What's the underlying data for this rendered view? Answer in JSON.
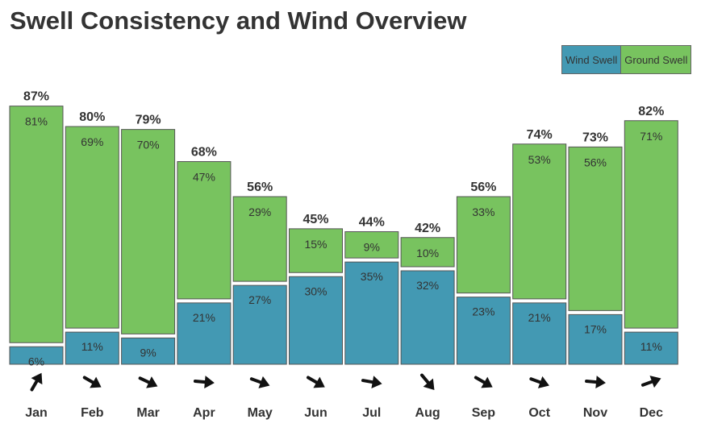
{
  "title": "Swell Consistency and Wind Overview",
  "legend": {
    "wind_swell": "Wind Swell",
    "ground_swell": "Ground Swell"
  },
  "colors": {
    "wind_swell": "#4399b3",
    "ground_swell": "#78c35f",
    "border": "#555555",
    "arrow": "#111111"
  },
  "chart_data": {
    "type": "bar",
    "stacked": true,
    "categories": [
      "Jan",
      "Feb",
      "Mar",
      "Apr",
      "May",
      "Jun",
      "Jul",
      "Aug",
      "Sep",
      "Oct",
      "Nov",
      "Dec"
    ],
    "totals": [
      "87%",
      "80%",
      "79%",
      "68%",
      "56%",
      "45%",
      "44%",
      "42%",
      "56%",
      "74%",
      "73%",
      "82%"
    ],
    "series": [
      {
        "name": "Wind Swell",
        "values": [
          6,
          11,
          9,
          21,
          27,
          30,
          35,
          32,
          23,
          21,
          17,
          11
        ],
        "labels": [
          "6%",
          "11%",
          "9%",
          "21%",
          "27%",
          "30%",
          "35%",
          "32%",
          "23%",
          "21%",
          "17%",
          "11%"
        ]
      },
      {
        "name": "Ground Swell",
        "values": [
          81,
          69,
          70,
          47,
          29,
          15,
          9,
          10,
          33,
          53,
          56,
          71
        ],
        "labels": [
          "81%",
          "69%",
          "70%",
          "47%",
          "29%",
          "15%",
          "9%",
          "10%",
          "33%",
          "53%",
          "56%",
          "71%"
        ]
      }
    ],
    "wind_direction_icons": [
      "arrow-up-right",
      "arrow-down-right",
      "arrow-down-right",
      "arrow-right",
      "arrow-down-right",
      "arrow-down-right",
      "arrow-right",
      "arrow-down-right-steep",
      "arrow-down-right",
      "arrow-down-right",
      "arrow-right",
      "arrow-up-right"
    ],
    "wind_direction_angles_deg": [
      -60,
      30,
      25,
      5,
      20,
      30,
      10,
      50,
      30,
      20,
      5,
      -20
    ],
    "legend_position": "top-right",
    "grid": false
  }
}
